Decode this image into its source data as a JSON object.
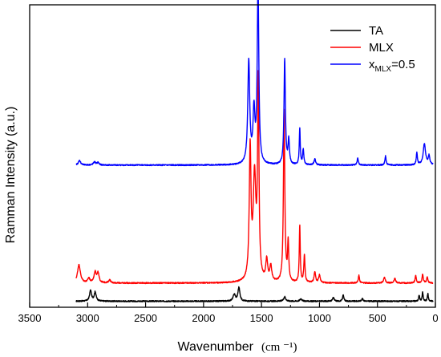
{
  "chart_data": {
    "type": "line",
    "xlabel": "Wavenumber",
    "xlabel_unit": "(cm ⁻¹)",
    "ylabel": "Ramman Intensity (a.u.)",
    "xlim": [
      3500,
      0
    ],
    "x_reversed": true,
    "x_ticks": [
      3500,
      3000,
      2500,
      2000,
      1500,
      1000,
      500,
      0
    ],
    "x_tick_labels": [
      "3500",
      "3000",
      "2500",
      "2000",
      "1500",
      "1000",
      "500",
      "0"
    ],
    "y_ticks_shown": false,
    "ylim": [
      0,
      1
    ],
    "grid": false,
    "legend_position": "top-right",
    "x_range": [
      3100,
      20
    ],
    "series": [
      {
        "name": "TA",
        "legend_main": "TA",
        "color": "#000000",
        "baseline": 0.02,
        "noise": 0.002,
        "peaks": [
          [
            2975,
            0.035,
            10
          ],
          [
            2935,
            0.03,
            10
          ],
          [
            1735,
            0.022,
            12
          ],
          [
            1695,
            0.045,
            10
          ],
          [
            1300,
            0.015,
            10
          ],
          [
            1160,
            0.008,
            10
          ],
          [
            880,
            0.012,
            8
          ],
          [
            795,
            0.022,
            6
          ],
          [
            630,
            0.008,
            8
          ],
          [
            140,
            0.02,
            5
          ],
          [
            110,
            0.03,
            5
          ],
          [
            65,
            0.025,
            5
          ]
        ]
      },
      {
        "name": "MLX",
        "legend_main": "MLX",
        "color": "#ff0000",
        "baseline": 0.08,
        "noise": 0.002,
        "peaks": [
          [
            3280,
            0.01,
            8
          ],
          [
            3075,
            0.06,
            15
          ],
          [
            2990,
            0.015,
            10
          ],
          [
            2935,
            0.035,
            12
          ],
          [
            2910,
            0.03,
            10
          ],
          [
            2810,
            0.01,
            10
          ],
          [
            1598,
            0.43,
            9
          ],
          [
            1560,
            0.34,
            14
          ],
          [
            1528,
            0.64,
            7
          ],
          [
            1455,
            0.07,
            10
          ],
          [
            1420,
            0.05,
            10
          ],
          [
            1305,
            0.57,
            7
          ],
          [
            1270,
            0.13,
            6
          ],
          [
            1170,
            0.19,
            5
          ],
          [
            1130,
            0.09,
            6
          ],
          [
            1040,
            0.035,
            8
          ],
          [
            1000,
            0.025,
            8
          ],
          [
            660,
            0.025,
            6
          ],
          [
            440,
            0.02,
            8
          ],
          [
            350,
            0.015,
            8
          ],
          [
            170,
            0.025,
            6
          ],
          [
            110,
            0.03,
            6
          ],
          [
            70,
            0.02,
            6
          ]
        ]
      },
      {
        "name": "x_MLX=0.5",
        "legend_main": "x",
        "legend_sub": "MLX",
        "legend_after": "=0.5",
        "color": "#0000ff",
        "baseline": 0.47,
        "noise": 0.002,
        "peaks": [
          [
            3070,
            0.015,
            12
          ],
          [
            2940,
            0.01,
            12
          ],
          [
            2910,
            0.008,
            10
          ],
          [
            1610,
            0.34,
            10
          ],
          [
            1565,
            0.17,
            10
          ],
          [
            1530,
            0.6,
            8
          ],
          [
            1300,
            0.35,
            7
          ],
          [
            1265,
            0.08,
            7
          ],
          [
            1170,
            0.12,
            5
          ],
          [
            1140,
            0.05,
            6
          ],
          [
            1040,
            0.02,
            8
          ],
          [
            670,
            0.025,
            6
          ],
          [
            430,
            0.03,
            6
          ],
          [
            160,
            0.04,
            6
          ],
          [
            95,
            0.07,
            12
          ],
          [
            55,
            0.03,
            8
          ]
        ]
      }
    ]
  }
}
